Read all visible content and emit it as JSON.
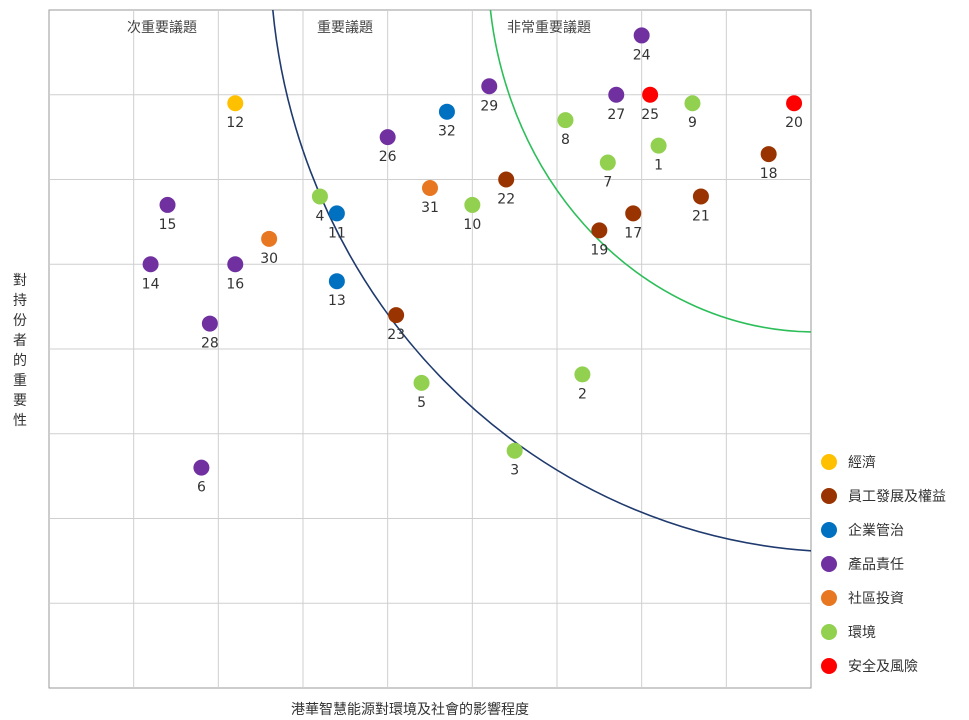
{
  "chart_data": {
    "type": "scatter",
    "title": "",
    "xlabel": "港華智慧能源對環境及社會的影響程度",
    "ylabel": "對持份者的重要性",
    "region_labels": [
      "次重要議題",
      "重要議題",
      "非常重要議題"
    ],
    "grid": true,
    "legend_position": "right",
    "series": [
      {
        "name": "經濟",
        "color": "#FFC000",
        "points": [
          {
            "label": "12",
            "x": 2.2,
            "y": 6.9
          }
        ]
      },
      {
        "name": "員工發展及權益",
        "color": "#993300",
        "points": [
          {
            "label": "22",
            "x": 5.4,
            "y": 6.0
          },
          {
            "label": "23",
            "x": 4.1,
            "y": 4.4
          },
          {
            "label": "19",
            "x": 6.5,
            "y": 5.4
          },
          {
            "label": "17",
            "x": 6.9,
            "y": 5.6
          },
          {
            "label": "21",
            "x": 7.7,
            "y": 5.8
          },
          {
            "label": "18",
            "x": 8.5,
            "y": 6.3
          }
        ]
      },
      {
        "name": "企業管治",
        "color": "#0070C0",
        "points": [
          {
            "label": "32",
            "x": 4.7,
            "y": 6.8
          },
          {
            "label": "11",
            "x": 3.4,
            "y": 5.6
          },
          {
            "label": "13",
            "x": 3.4,
            "y": 4.8
          }
        ]
      },
      {
        "name": "產品責任",
        "color": "#7030A0",
        "points": [
          {
            "label": "24",
            "x": 7.0,
            "y": 7.7
          },
          {
            "label": "29",
            "x": 5.2,
            "y": 7.1
          },
          {
            "label": "27",
            "x": 6.7,
            "y": 7.0
          },
          {
            "label": "26",
            "x": 4.0,
            "y": 6.5
          },
          {
            "label": "15",
            "x": 1.4,
            "y": 5.7
          },
          {
            "label": "14",
            "x": 1.2,
            "y": 5.0
          },
          {
            "label": "16",
            "x": 2.2,
            "y": 5.0
          },
          {
            "label": "28",
            "x": 1.9,
            "y": 4.3
          },
          {
            "label": "6",
            "x": 1.8,
            "y": 2.6
          }
        ]
      },
      {
        "name": "社區投資",
        "color": "#E87722",
        "points": [
          {
            "label": "31",
            "x": 4.5,
            "y": 5.9
          },
          {
            "label": "30",
            "x": 2.6,
            "y": 5.3
          }
        ]
      },
      {
        "name": "環境",
        "color": "#92D050",
        "points": [
          {
            "label": "9",
            "x": 7.6,
            "y": 6.9
          },
          {
            "label": "8",
            "x": 6.1,
            "y": 6.7
          },
          {
            "label": "1",
            "x": 7.2,
            "y": 6.4
          },
          {
            "label": "7",
            "x": 6.6,
            "y": 6.2
          },
          {
            "label": "4",
            "x": 3.2,
            "y": 5.8
          },
          {
            "label": "10",
            "x": 5.0,
            "y": 5.7
          },
          {
            "label": "5",
            "x": 4.4,
            "y": 3.6
          },
          {
            "label": "2",
            "x": 6.3,
            "y": 3.7
          },
          {
            "label": "3",
            "x": 5.5,
            "y": 2.8
          }
        ]
      },
      {
        "name": "安全及風險",
        "color": "#FF0000",
        "points": [
          {
            "label": "25",
            "x": 7.1,
            "y": 7.0
          },
          {
            "label": "20",
            "x": 8.8,
            "y": 6.9
          }
        ]
      }
    ]
  }
}
